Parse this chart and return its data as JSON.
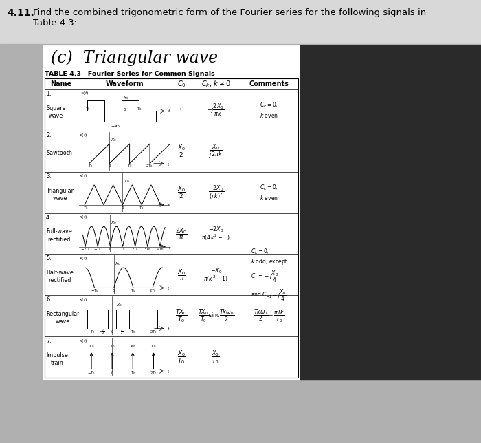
{
  "title_number": "4.11.",
  "title_text": "Find the combined trigonometric form of the Fourier series for the following signals in\n        Table 4.3:",
  "subtitle": "(c)  Triangular wave",
  "table_title": "TABLE 4.3   Fourier Series for Common Signals",
  "col_headers": [
    "Name",
    "Waveform",
    "C_0",
    "C_k, k != 0",
    "Comments"
  ],
  "bg_color": "#b8b8b8",
  "top_bg": "#d8d8d8",
  "card_color": "#ffffff",
  "dark_bg": "#2a2a2a"
}
